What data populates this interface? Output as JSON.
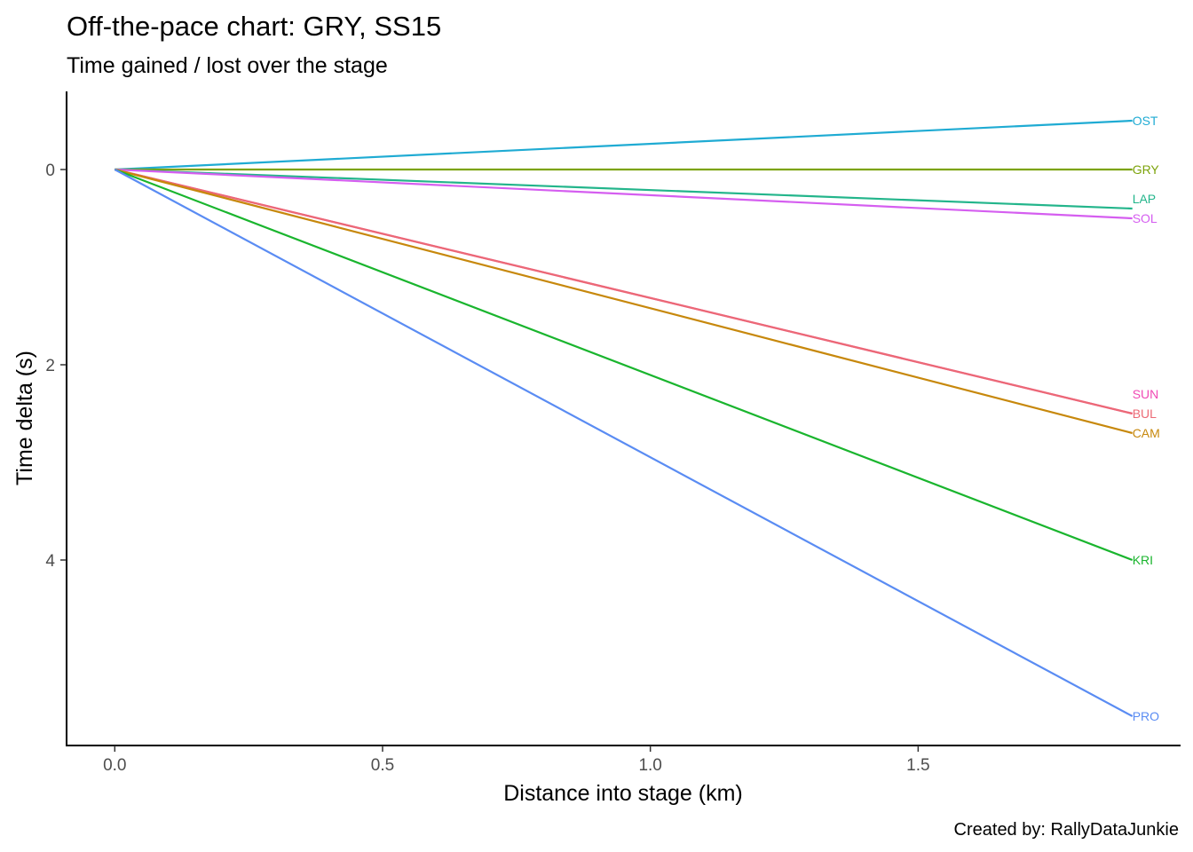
{
  "chart_data": {
    "type": "line",
    "title": "Off-the-pace chart: GRY, SS15",
    "subtitle": "Time gained / lost over the stage",
    "xlabel": "Distance into stage (km)",
    "ylabel": "Time delta (s)",
    "caption": "Created by: RallyDataJunkie",
    "x_ticks": [
      "0.0",
      "0.5",
      "1.0",
      "1.5"
    ],
    "y_ticks": [
      "0",
      "2",
      "4"
    ],
    "xlim": [
      -0.09,
      1.99
    ],
    "ylim": [
      -0.8,
      5.9
    ],
    "y_reversed": true,
    "grid": false,
    "legend": "none",
    "x": [
      0,
      1.9
    ],
    "series": [
      {
        "name": "OST",
        "color": "#1fabd3",
        "values": [
          0,
          -0.5
        ]
      },
      {
        "name": "GRY",
        "color": "#7ca30a",
        "values": [
          0,
          0.0
        ]
      },
      {
        "name": "LAP",
        "color": "#23b58b",
        "values": [
          0,
          0.4
        ]
      },
      {
        "name": "SOL",
        "color": "#d55ef0",
        "values": [
          0,
          0.5
        ]
      },
      {
        "name": "SUN",
        "color": "#f049b4",
        "values": [
          0,
          2.5
        ]
      },
      {
        "name": "BUL",
        "color": "#ec6975",
        "values": [
          0,
          2.5
        ]
      },
      {
        "name": "CAM",
        "color": "#c7880c",
        "values": [
          0,
          2.7
        ]
      },
      {
        "name": "KRI",
        "color": "#1ab52e",
        "values": [
          0,
          4.0
        ]
      },
      {
        "name": "PRO",
        "color": "#5a8cf3",
        "values": [
          0,
          5.6
        ]
      }
    ],
    "label_y": {
      "OST": -0.5,
      "GRY": 0.0,
      "LAP": 0.3,
      "SOL": 0.5,
      "SUN": 2.3,
      "BUL": 2.5,
      "CAM": 2.7,
      "KRI": 4.0,
      "PRO": 5.6
    }
  }
}
